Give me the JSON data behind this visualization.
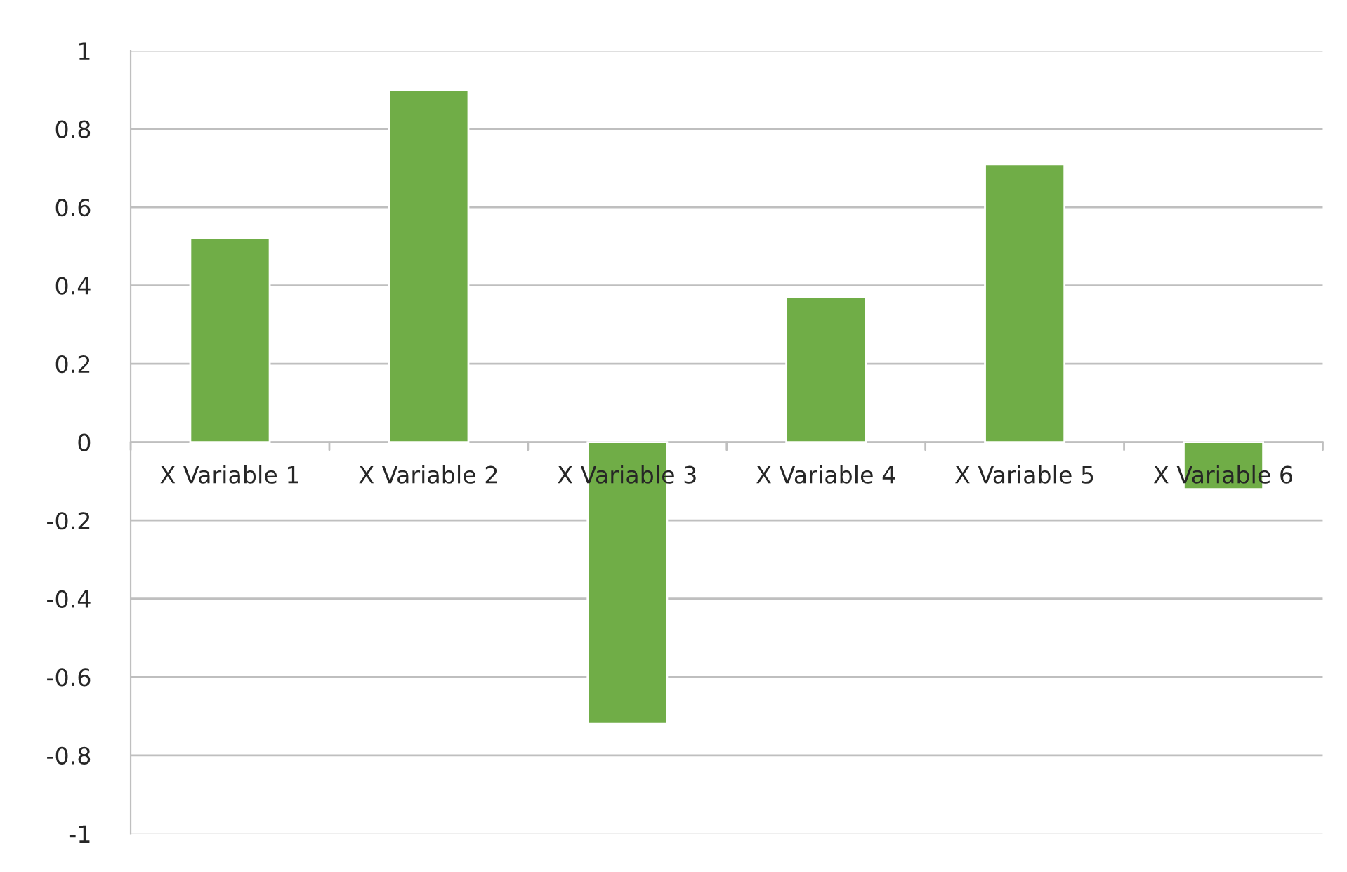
{
  "chart_data": {
    "type": "bar",
    "categories": [
      "X Variable 1",
      "X Variable 2",
      "X Variable 3",
      "X Variable 4",
      "X Variable 5",
      "X Variable 6"
    ],
    "values": [
      0.52,
      0.9,
      -0.72,
      0.37,
      0.71,
      -0.12
    ],
    "color": "#70ad47",
    "ylim": [
      -1,
      1
    ],
    "yticks": [
      {
        "value": -1,
        "label": "-1"
      },
      {
        "value": -0.8,
        "label": "-0.8"
      },
      {
        "value": -0.6,
        "label": "-0.6"
      },
      {
        "value": -0.4,
        "label": "-0.4"
      },
      {
        "value": -0.2,
        "label": "-0.2"
      },
      0,
      0.2,
      0.4,
      0.6,
      0.8,
      1
    ],
    "grid": "y",
    "legend": false
  }
}
